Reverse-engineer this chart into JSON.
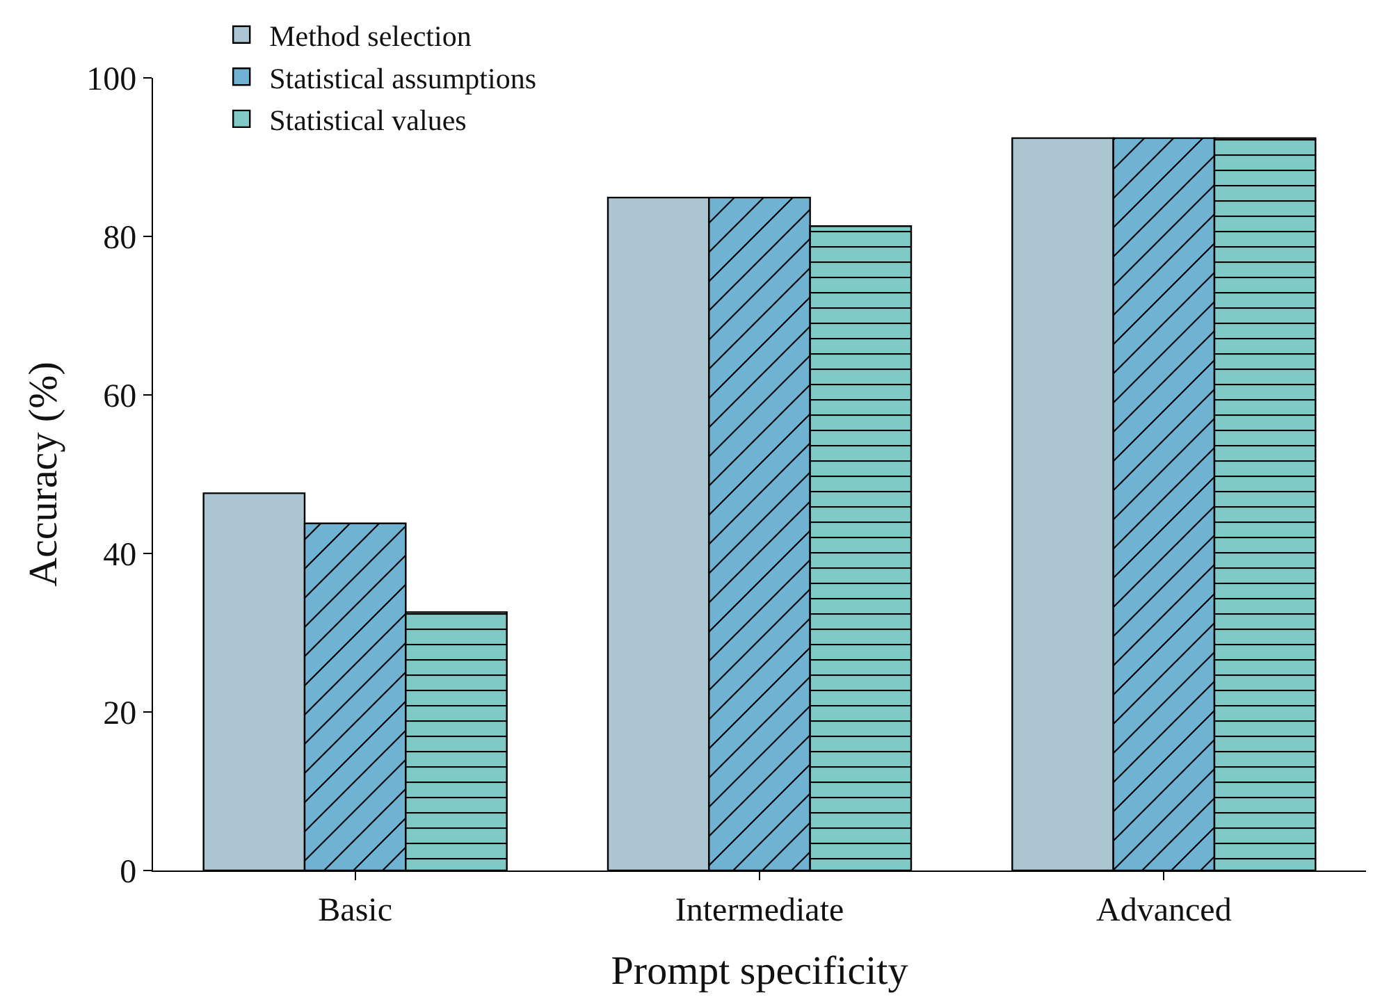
{
  "chart_data": {
    "type": "bar",
    "xlabel": "Prompt specificity",
    "ylabel": "Accuracy (%)",
    "categories": [
      "Basic",
      "Intermediate",
      "Advanced"
    ],
    "series": [
      {
        "name": "Method selection",
        "color": "#abc6d0",
        "values": [
          47.6,
          84.9,
          92.4
        ]
      },
      {
        "name": "Statistical assumptions",
        "color": "#6fb2d2",
        "values": [
          43.8,
          84.9,
          92.4
        ]
      },
      {
        "name": "Statistical values",
        "color": "#7fcac6",
        "values": [
          32.6,
          81.3,
          92.4
        ]
      }
    ],
    "ylim": [
      0,
      100
    ],
    "yticks": [
      0,
      20,
      40,
      60,
      80,
      100
    ],
    "grid": false,
    "legend": "top left"
  }
}
